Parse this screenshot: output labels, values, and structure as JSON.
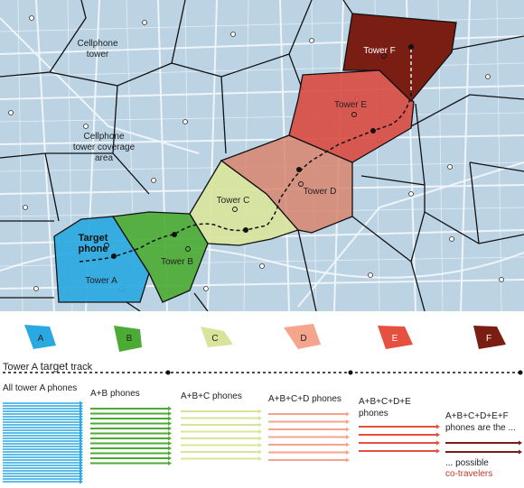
{
  "map": {
    "cellphone_tower_label": [
      "Cellphone",
      "tower"
    ],
    "coverage_label": [
      "Cellphone",
      "tower coverage",
      "area"
    ],
    "target_label": [
      "Target",
      "phone"
    ],
    "towers": [
      {
        "id": "A",
        "label": "Tower A",
        "color": "#2aa8e0"
      },
      {
        "id": "B",
        "label": "Tower B",
        "color": "#4cab34"
      },
      {
        "id": "C",
        "label": "Tower C",
        "color": "#d9e49a"
      },
      {
        "id": "D",
        "label": "Tower D",
        "color": "#d9826a"
      },
      {
        "id": "E",
        "label": "Tower E",
        "color": "#d94a40"
      },
      {
        "id": "F",
        "label": "Tower F",
        "color": "#7a1e14"
      }
    ]
  },
  "legend": {
    "shapes": [
      {
        "id": "A",
        "color": "#2aa8e0"
      },
      {
        "id": "B",
        "color": "#4cab34"
      },
      {
        "id": "C",
        "color": "#d9e49a"
      },
      {
        "id": "D",
        "color": "#f4a58c"
      },
      {
        "id": "E",
        "color": "#e5503f"
      },
      {
        "id": "F",
        "color": "#7a1e14"
      }
    ],
    "track_label_prefix": "Tower A ",
    "track_label_emph": "target",
    "track_label_suffix": " track",
    "columns": [
      {
        "label": [
          "All tower A phones"
        ],
        "color": "#2aa8e0",
        "lines": 30
      },
      {
        "label": [
          "A+B phones"
        ],
        "color": "#4cab34",
        "lines": 12
      },
      {
        "label": [
          "A+B+C phones"
        ],
        "color": "#d9e49a",
        "lines": 8
      },
      {
        "label": [
          "A+B+C+D phones"
        ],
        "color": "#f4a58c",
        "lines": 7
      },
      {
        "label": [
          "A+B+C+D+E",
          "phones"
        ],
        "color": "#e5503f",
        "lines": 4
      },
      {
        "label": [
          "A+B+C+D+E+F",
          "phones are the ..."
        ],
        "color": "#7a1e14",
        "lines": 2
      }
    ],
    "possible_label": "... possible",
    "cotravelers_label": "co-travelers",
    "cotravelers_color": "#c0392b"
  }
}
